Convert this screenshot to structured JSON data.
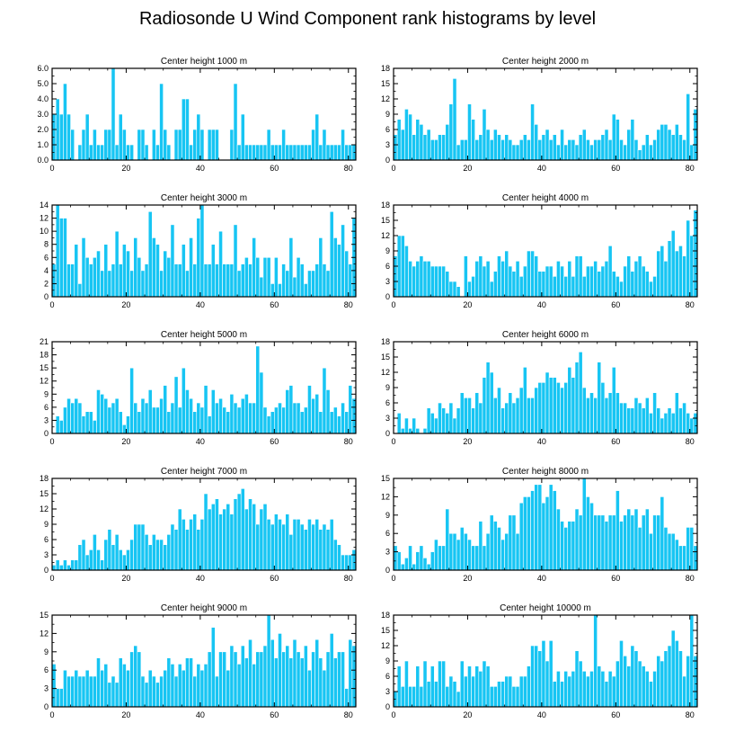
{
  "title": "Radiosonde U Wind Component rank histograms by level",
  "colors": {
    "bar": "#17C5F3",
    "bar_edge": "#ffffff",
    "axis": "#000000"
  },
  "chart_data": [
    {
      "type": "bar",
      "title": "Center height 1000 m",
      "xlim": [
        0,
        82
      ],
      "ylim": [
        0,
        6
      ],
      "x_ticks": [
        0,
        20,
        40,
        60,
        80
      ],
      "y_ticks": [
        0,
        1,
        2,
        3,
        4,
        5,
        6
      ],
      "y_tick_labels": [
        "0.0",
        "1.0",
        "2.0",
        "3.0",
        "4.0",
        "5.0",
        "6.0"
      ],
      "values": [
        3,
        4,
        3,
        5,
        3,
        2,
        0,
        1,
        2,
        3,
        1,
        2,
        1,
        1,
        2,
        2,
        6,
        1,
        3,
        2,
        1,
        1,
        0,
        2,
        2,
        1,
        0,
        2,
        1,
        5,
        2,
        1,
        0,
        2,
        2,
        4,
        4,
        1,
        2,
        3,
        2,
        0,
        2,
        2,
        2,
        0,
        0,
        0,
        2,
        5,
        1,
        3,
        1,
        1,
        1,
        1,
        1,
        1,
        2,
        1,
        1,
        1,
        2,
        1,
        1,
        1,
        1,
        1,
        1,
        1,
        2,
        3,
        1,
        2,
        1,
        1,
        1,
        1,
        2,
        1,
        1,
        1
      ]
    },
    {
      "type": "bar",
      "title": "Center height 2000 m",
      "xlim": [
        0,
        82
      ],
      "ylim": [
        0,
        18
      ],
      "x_ticks": [
        0,
        20,
        40,
        60,
        80
      ],
      "y_ticks": [
        0,
        3,
        6,
        9,
        12,
        15,
        18
      ],
      "y_tick_labels": [
        "0",
        "3",
        "6",
        "9",
        "12",
        "15",
        "18"
      ],
      "values": [
        5,
        8,
        6,
        10,
        9,
        5,
        8,
        7,
        5,
        6,
        4,
        4,
        5,
        5,
        7,
        11,
        16,
        3,
        4,
        4,
        11,
        8,
        4,
        5,
        10,
        6,
        4,
        6,
        5,
        4,
        5,
        4,
        3,
        3,
        4,
        5,
        4,
        11,
        7,
        4,
        5,
        6,
        4,
        5,
        3,
        6,
        3,
        4,
        4,
        3,
        5,
        6,
        4,
        3,
        4,
        4,
        5,
        6,
        4,
        9,
        8,
        4,
        3,
        6,
        8,
        4,
        2,
        3,
        5,
        3,
        4,
        6,
        7,
        7,
        6,
        5,
        7,
        5,
        4,
        13,
        3,
        10
      ]
    },
    {
      "type": "bar",
      "title": "Center height 3000 m",
      "xlim": [
        0,
        82
      ],
      "ylim": [
        0,
        14
      ],
      "x_ticks": [
        0,
        20,
        40,
        60,
        80
      ],
      "y_ticks": [
        0,
        2,
        4,
        6,
        8,
        10,
        12,
        14
      ],
      "y_tick_labels": [
        "0",
        "2",
        "4",
        "6",
        "8",
        "10",
        "12",
        "14"
      ],
      "values": [
        5,
        14,
        12,
        12,
        5,
        5,
        8,
        2,
        9,
        6,
        5,
        6,
        7,
        4,
        8,
        4,
        5,
        10,
        5,
        8,
        7,
        4,
        9,
        6,
        4,
        5,
        13,
        9,
        8,
        4,
        7,
        6,
        11,
        5,
        5,
        8,
        4,
        9,
        5,
        12,
        14,
        5,
        5,
        8,
        5,
        10,
        5,
        5,
        5,
        11,
        4,
        5,
        6,
        5,
        9,
        6,
        3,
        6,
        6,
        2,
        6,
        2,
        5,
        4,
        9,
        3,
        6,
        5,
        2,
        4,
        4,
        5,
        9,
        5,
        4,
        13,
        9,
        8,
        11,
        7,
        5,
        12
      ]
    },
    {
      "type": "bar",
      "title": "Center height 4000 m",
      "xlim": [
        0,
        82
      ],
      "ylim": [
        0,
        18
      ],
      "x_ticks": [
        0,
        20,
        40,
        60,
        80
      ],
      "y_ticks": [
        0,
        3,
        6,
        9,
        12,
        15,
        18
      ],
      "y_tick_labels": [
        "0",
        "3",
        "6",
        "9",
        "12",
        "15",
        "18"
      ],
      "values": [
        8,
        12,
        12,
        10,
        7,
        6,
        7,
        8,
        7,
        7,
        6,
        6,
        6,
        6,
        5,
        3,
        3,
        2,
        0,
        8,
        3,
        4,
        7,
        8,
        6,
        7,
        3,
        5,
        8,
        7,
        9,
        6,
        5,
        7,
        4,
        6,
        9,
        9,
        8,
        5,
        5,
        6,
        6,
        4,
        7,
        6,
        4,
        7,
        4,
        8,
        8,
        4,
        6,
        6,
        7,
        5,
        6,
        7,
        10,
        5,
        4,
        3,
        6,
        8,
        5,
        7,
        8,
        6,
        5,
        3,
        4,
        9,
        10,
        7,
        11,
        13,
        9,
        10,
        8,
        15,
        12,
        17
      ]
    },
    {
      "type": "bar",
      "title": "Center height 5000 m",
      "xlim": [
        0,
        82
      ],
      "ylim": [
        0,
        21
      ],
      "x_ticks": [
        0,
        20,
        40,
        60,
        80
      ],
      "y_ticks": [
        0,
        3,
        6,
        9,
        12,
        15,
        18,
        21
      ],
      "y_tick_labels": [
        "0",
        "3",
        "6",
        "9",
        "12",
        "15",
        "18",
        "21"
      ],
      "values": [
        0,
        4,
        3,
        6,
        8,
        7,
        8,
        7,
        4,
        5,
        5,
        3,
        10,
        9,
        8,
        6,
        7,
        8,
        5,
        2,
        4,
        15,
        7,
        5,
        8,
        7,
        10,
        6,
        6,
        8,
        11,
        5,
        7,
        13,
        6,
        15,
        10,
        8,
        5,
        7,
        6,
        11,
        4,
        10,
        7,
        8,
        6,
        5,
        9,
        7,
        6,
        8,
        9,
        7,
        7,
        20,
        14,
        6,
        4,
        5,
        6,
        7,
        6,
        10,
        11,
        7,
        7,
        5,
        6,
        11,
        8,
        9,
        5,
        15,
        10,
        5,
        6,
        4,
        7,
        5,
        11,
        8
      ]
    },
    {
      "type": "bar",
      "title": "Center height 6000 m",
      "xlim": [
        0,
        82
      ],
      "ylim": [
        0,
        18
      ],
      "x_ticks": [
        0,
        20,
        40,
        60,
        80
      ],
      "y_ticks": [
        0,
        3,
        6,
        9,
        12,
        15,
        18
      ],
      "y_tick_labels": [
        "0",
        "3",
        "6",
        "9",
        "12",
        "15",
        "18"
      ],
      "values": [
        0,
        4,
        1,
        3,
        1,
        3,
        1,
        0,
        1,
        5,
        4,
        3,
        6,
        5,
        4,
        6,
        3,
        5,
        8,
        7,
        7,
        5,
        8,
        6,
        11,
        14,
        12,
        7,
        9,
        5,
        6,
        8,
        6,
        7,
        9,
        13,
        7,
        7,
        9,
        10,
        10,
        12,
        11,
        11,
        10,
        9,
        10,
        13,
        11,
        14,
        16,
        9,
        7,
        8,
        7,
        14,
        10,
        7,
        8,
        13,
        8,
        6,
        6,
        5,
        5,
        7,
        6,
        5,
        7,
        4,
        8,
        5,
        3,
        4,
        5,
        4,
        8,
        5,
        6,
        4,
        3,
        4
      ]
    },
    {
      "type": "bar",
      "title": "Center height 7000 m",
      "xlim": [
        0,
        82
      ],
      "ylim": [
        0,
        18
      ],
      "x_ticks": [
        0,
        20,
        40,
        60,
        80
      ],
      "y_ticks": [
        0,
        3,
        6,
        9,
        12,
        15,
        18
      ],
      "y_tick_labels": [
        "0",
        "3",
        "6",
        "9",
        "12",
        "15",
        "18"
      ],
      "values": [
        1,
        2,
        1,
        2,
        1,
        2,
        2,
        5,
        6,
        3,
        4,
        7,
        4,
        2,
        6,
        8,
        5,
        7,
        4,
        3,
        4,
        6,
        9,
        9,
        9,
        7,
        5,
        7,
        6,
        6,
        5,
        7,
        9,
        8,
        12,
        10,
        8,
        10,
        11,
        8,
        10,
        15,
        12,
        13,
        14,
        11,
        12,
        13,
        11,
        14,
        15,
        16,
        12,
        14,
        13,
        9,
        12,
        13,
        10,
        9,
        11,
        10,
        9,
        11,
        7,
        10,
        10,
        9,
        8,
        10,
        9,
        10,
        8,
        9,
        8,
        10,
        6,
        5,
        3,
        3,
        3,
        4
      ]
    },
    {
      "type": "bar",
      "title": "Center height 8000 m",
      "xlim": [
        0,
        82
      ],
      "ylim": [
        0,
        15
      ],
      "x_ticks": [
        0,
        20,
        40,
        60,
        80
      ],
      "y_ticks": [
        0,
        3,
        6,
        9,
        12,
        15
      ],
      "y_tick_labels": [
        "0",
        "3",
        "6",
        "9",
        "12",
        "15"
      ],
      "values": [
        4,
        3,
        1,
        2,
        4,
        1,
        3,
        4,
        2,
        1,
        3,
        5,
        4,
        4,
        10,
        6,
        6,
        5,
        7,
        6,
        5,
        4,
        4,
        8,
        4,
        6,
        9,
        8,
        7,
        5,
        6,
        9,
        9,
        6,
        11,
        12,
        12,
        13,
        14,
        14,
        11,
        12,
        14,
        13,
        10,
        8,
        7,
        8,
        8,
        10,
        9,
        15,
        12,
        11,
        9,
        9,
        9,
        8,
        9,
        9,
        13,
        8,
        9,
        10,
        9,
        10,
        7,
        9,
        10,
        6,
        9,
        9,
        12,
        7,
        6,
        6,
        5,
        4,
        4,
        7,
        7,
        4
      ]
    },
    {
      "type": "bar",
      "title": "Center height 9000 m",
      "xlim": [
        0,
        82
      ],
      "ylim": [
        0,
        15
      ],
      "x_ticks": [
        0,
        20,
        40,
        60,
        80
      ],
      "y_ticks": [
        0,
        3,
        6,
        9,
        12,
        15
      ],
      "y_tick_labels": [
        "0",
        "3",
        "6",
        "9",
        "12",
        "15"
      ],
      "values": [
        7,
        3,
        3,
        6,
        5,
        5,
        6,
        5,
        5,
        6,
        5,
        5,
        8,
        6,
        7,
        4,
        5,
        4,
        8,
        7,
        6,
        9,
        10,
        9,
        5,
        4,
        6,
        5,
        4,
        5,
        6,
        8,
        7,
        5,
        7,
        6,
        8,
        8,
        5,
        7,
        6,
        7,
        9,
        13,
        5,
        9,
        9,
        6,
        10,
        9,
        7,
        10,
        8,
        11,
        7,
        9,
        9,
        10,
        15,
        11,
        8,
        12,
        9,
        10,
        8,
        11,
        9,
        8,
        10,
        6,
        9,
        11,
        8,
        6,
        9,
        12,
        8,
        9,
        9,
        3,
        11,
        10
      ]
    },
    {
      "type": "bar",
      "title": "Center height 10000 m",
      "xlim": [
        0,
        82
      ],
      "ylim": [
        0,
        18
      ],
      "x_ticks": [
        0,
        20,
        40,
        60,
        80
      ],
      "y_ticks": [
        0,
        3,
        6,
        9,
        12,
        15,
        18
      ],
      "y_tick_labels": [
        "0",
        "3",
        "6",
        "9",
        "12",
        "15",
        "18"
      ],
      "values": [
        3,
        8,
        4,
        9,
        4,
        4,
        8,
        4,
        9,
        5,
        8,
        5,
        9,
        9,
        4,
        6,
        5,
        3,
        9,
        6,
        8,
        6,
        8,
        7,
        9,
        8,
        4,
        4,
        5,
        5,
        6,
        6,
        4,
        4,
        6,
        6,
        8,
        12,
        12,
        11,
        13,
        9,
        13,
        5,
        7,
        5,
        7,
        6,
        7,
        11,
        9,
        7,
        6,
        7,
        18,
        8,
        7,
        5,
        7,
        6,
        9,
        13,
        10,
        8,
        12,
        11,
        9,
        8,
        7,
        5,
        7,
        10,
        9,
        11,
        12,
        15,
        13,
        11,
        6,
        10,
        18,
        10
      ]
    }
  ]
}
